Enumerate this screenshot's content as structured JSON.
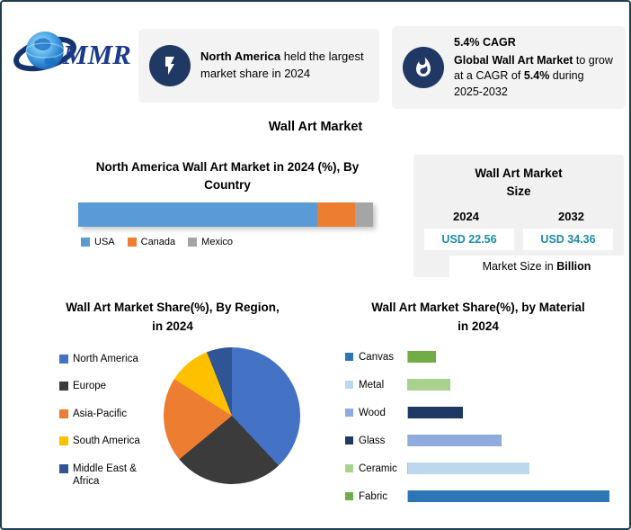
{
  "page": {
    "title": "Wall Art Market"
  },
  "brand": {
    "logo_text": "MMR"
  },
  "theme": {
    "accent_navy": "#203864",
    "panel_gray": "#f2f2f2",
    "value_teal": "#1b8ca6",
    "frame_border": "#1c3f52"
  },
  "callouts": [
    {
      "icon": "lightning-icon",
      "bold": "North America",
      "text": " held the largest market share in 2024"
    },
    {
      "icon": "flame-icon",
      "headline": "5.4% CAGR",
      "body_bold1": "Global Wall Art Market",
      "body_text1": " to grow at a CAGR of ",
      "body_bold2": "5.4%",
      "body_text2": " during 2025-2032"
    }
  ],
  "market_size": {
    "title_lines": [
      "Wall Art Market",
      "Size"
    ],
    "years": [
      "2024",
      "2032"
    ],
    "values": [
      "USD 22.56",
      "USD 34.36"
    ],
    "unit_prefix": "Market Size in ",
    "unit_bold": "Billion"
  },
  "chart_data": [
    {
      "type": "bar",
      "subtype": "stacked-horizontal-100",
      "title": "North America Wall Art Market in 2024 (%), By Country",
      "title_lines": [
        "North America Wall Art Market in 2024 (%), By",
        "Country"
      ],
      "categories": [
        "USA",
        "Canada",
        "Mexico"
      ],
      "values": [
        81,
        13,
        6
      ],
      "colors": [
        "#5B9BD5",
        "#ED7D31",
        "#A5A5A5"
      ],
      "legend_position": "bottom",
      "xlim": [
        0,
        100
      ]
    },
    {
      "type": "pie",
      "title": "Wall Art  Market Share(%), By Region, in 2024",
      "title_lines": [
        "Wall Art  Market Share(%), By Region,",
        "in 2024"
      ],
      "labels": [
        "North America",
        "Europe",
        "Asia-Pacific",
        "South America",
        "Middle East & Africa"
      ],
      "values": [
        38,
        26,
        20,
        10,
        6
      ],
      "colors": [
        "#4472C4",
        "#3B3B3B",
        "#ED7D31",
        "#FFC000",
        "#2F5597"
      ],
      "legend_position": "left"
    },
    {
      "type": "bar",
      "subtype": "horizontal",
      "title": "Wall Art Market Share(%), by Material in 2024",
      "title_lines": [
        "Wall Art Market Share(%), by Material",
        "in 2024"
      ],
      "categories": [
        "Canvas",
        "Metal",
        "Wood",
        "Glass",
        "Ceramic",
        "Fabric"
      ],
      "values": [
        13,
        20,
        26,
        44,
        57,
        95
      ],
      "bar_colors": [
        "#70AD47",
        "#A9D18E",
        "#203864",
        "#8FAADC",
        "#BDD7EE",
        "#2E75B6"
      ],
      "marker_colors": [
        "#2E75B6",
        "#BDD7EE",
        "#8FAADC",
        "#203864",
        "#A9D18E",
        "#70AD47"
      ],
      "xlim": [
        0,
        100
      ]
    }
  ]
}
